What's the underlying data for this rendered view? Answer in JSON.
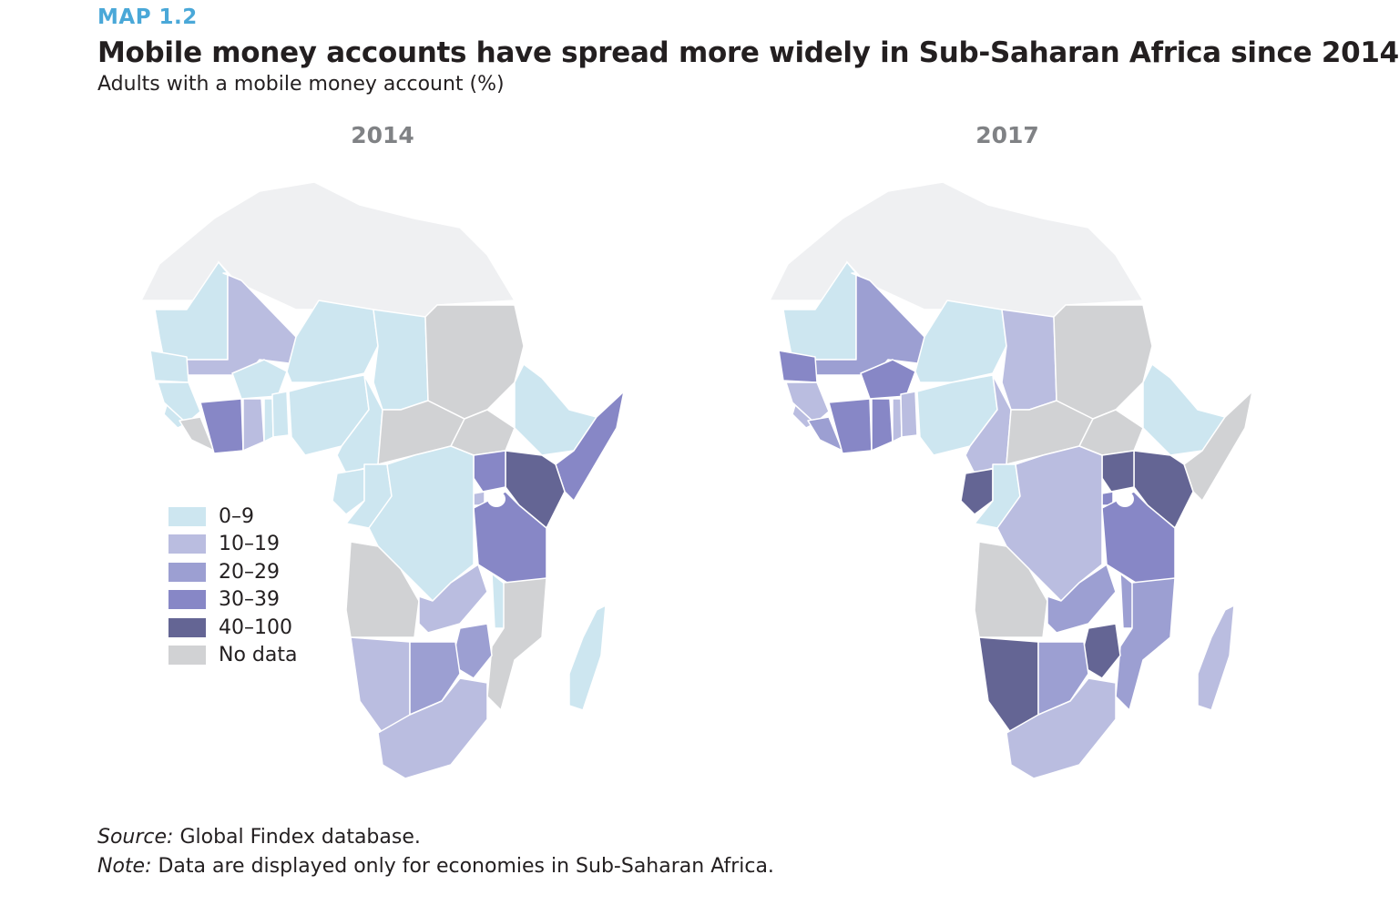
{
  "header": {
    "label": "MAP 1.2",
    "title": "Mobile money accounts have spread more widely in Sub-Saharan Africa since 2014",
    "subtitle": "Adults with a mobile money account (%)"
  },
  "maps": [
    {
      "title": "2014"
    },
    {
      "title": "2017"
    }
  ],
  "colors": {
    "bin_0": "#cde6f0",
    "bin_1": "#babde0",
    "bin_2": "#9c9fd2",
    "bin_3": "#8787c6",
    "bin_4": "#646594",
    "no_data": "#d1d2d4",
    "non_ssa": "#eff0f2"
  },
  "legend": [
    {
      "label": "0–9",
      "color": "#cde6f0"
    },
    {
      "label": "10–19",
      "color": "#babde0"
    },
    {
      "label": "20–29",
      "color": "#9c9fd2"
    },
    {
      "label": "30–39",
      "color": "#8787c6"
    },
    {
      "label": "40–100",
      "color": "#646594"
    },
    {
      "label": "No data",
      "color": "#d1d2d4"
    }
  ],
  "footer": {
    "source_label": "Source:",
    "source_text": " Global Findex database.",
    "note_label": "Note:",
    "note_text": " Data are displayed only for economies in Sub-Saharan Africa."
  },
  "chart_data": {
    "type": "choropleth",
    "bins": [
      "0–9",
      "10–19",
      "20–29",
      "30–39",
      "40–100",
      "No data"
    ],
    "2014": {
      "Mauritania": "0–9",
      "Mali": "10–19",
      "Senegal": "0–9",
      "Guinea": "0–9",
      "Sierra Leone": "0–9",
      "Liberia": "No data",
      "Cote d'Ivoire": "30–39",
      "Burkina Faso": "0–9",
      "Ghana": "10–19",
      "Togo": "0–9",
      "Benin": "0–9",
      "Niger": "0–9",
      "Nigeria": "0–9",
      "Chad": "0–9",
      "Cameroon": "0–9",
      "Central African Republic": "No data",
      "Sudan": "No data",
      "South Sudan": "No data",
      "Ethiopia": "0–9",
      "Somalia": "30–39",
      "Kenya": "40–100",
      "Uganda": "30–39",
      "Rwanda": "10–19",
      "Tanzania": "30–39",
      "Gabon": "0–9",
      "Congo, Rep.": "0–9",
      "Congo, Dem. Rep.": "0–9",
      "Angola": "No data",
      "Zambia": "10–19",
      "Malawi": "0–9",
      "Mozambique": "No data",
      "Zimbabwe": "20–29",
      "Namibia": "10–19",
      "Botswana": "20–29",
      "South Africa": "10–19",
      "Madagascar": "0–9"
    },
    "2017": {
      "Mauritania": "0–9",
      "Mali": "20–29",
      "Senegal": "30–39",
      "Guinea": "10–19",
      "Sierra Leone": "10–19",
      "Liberia": "20–29",
      "Cote d'Ivoire": "30–39",
      "Burkina Faso": "30–39",
      "Ghana": "30–39",
      "Togo": "10–19",
      "Benin": "10–19",
      "Niger": "0–9",
      "Nigeria": "0–9",
      "Chad": "10–19",
      "Cameroon": "10–19",
      "Central African Republic": "No data",
      "Sudan": "No data",
      "South Sudan": "No data",
      "Ethiopia": "0–9",
      "Somalia": "No data",
      "Kenya": "40–100",
      "Uganda": "40–100",
      "Rwanda": "30–39",
      "Tanzania": "30–39",
      "Gabon": "40–100",
      "Congo, Rep.": "0–9",
      "Congo, Dem. Rep.": "10–19",
      "Angola": "No data",
      "Zambia": "20–29",
      "Malawi": "20–29",
      "Mozambique": "20–29",
      "Zimbabwe": "40–100",
      "Namibia": "40–100",
      "Botswana": "20–29",
      "South Africa": "10–19",
      "Madagascar": "10–19"
    }
  }
}
